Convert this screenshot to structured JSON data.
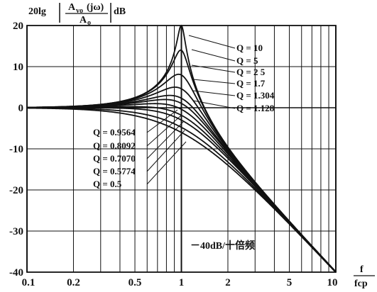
{
  "chart_data": {
    "type": "line",
    "title": "",
    "ylabel_parts": {
      "prefix": "20lg",
      "numerator": "A",
      "numerator_sub": "vo",
      "numerator_arg": "(jω)",
      "denominator": "A",
      "denominator_sub": "o",
      "unit": "dB"
    },
    "xlabel": {
      "numerator": "f",
      "denominator": "fcp"
    },
    "x_scale": "log",
    "xlim": [
      0.1,
      10
    ],
    "ylim": [
      -40,
      20
    ],
    "x_ticks": [
      "0.1",
      "0.2",
      "0.5",
      "1",
      "2",
      "5",
      "10"
    ],
    "x_tick_values": [
      0.1,
      0.2,
      0.5,
      1,
      2,
      5,
      10
    ],
    "y_ticks": [
      "20",
      "10",
      "0",
      "-10",
      "-20",
      "-30",
      "-40"
    ],
    "y_tick_values": [
      20,
      10,
      0,
      -10,
      -20,
      -30,
      -40
    ],
    "grid": true,
    "series": [
      {
        "label": "Q = 10",
        "q": 10
      },
      {
        "label": "Q = 5",
        "q": 5
      },
      {
        "label": "Q = 2 5",
        "q": 2.5
      },
      {
        "label": "Q = 1.7",
        "q": 1.7
      },
      {
        "label": "Q = 1.304",
        "q": 1.304
      },
      {
        "label": "Q = 1.128",
        "q": 1.128
      },
      {
        "label": "Q = 0.9564",
        "q": 0.9564
      },
      {
        "label": "Q = 0.8092",
        "q": 0.8092
      },
      {
        "label": "Q = 0.7070",
        "q": 0.707
      },
      {
        "label": "Q = 0.5774",
        "q": 0.5774
      },
      {
        "label": "Q = 0.5",
        "q": 0.5
      }
    ],
    "annotation": "－40dB/十倍频"
  }
}
